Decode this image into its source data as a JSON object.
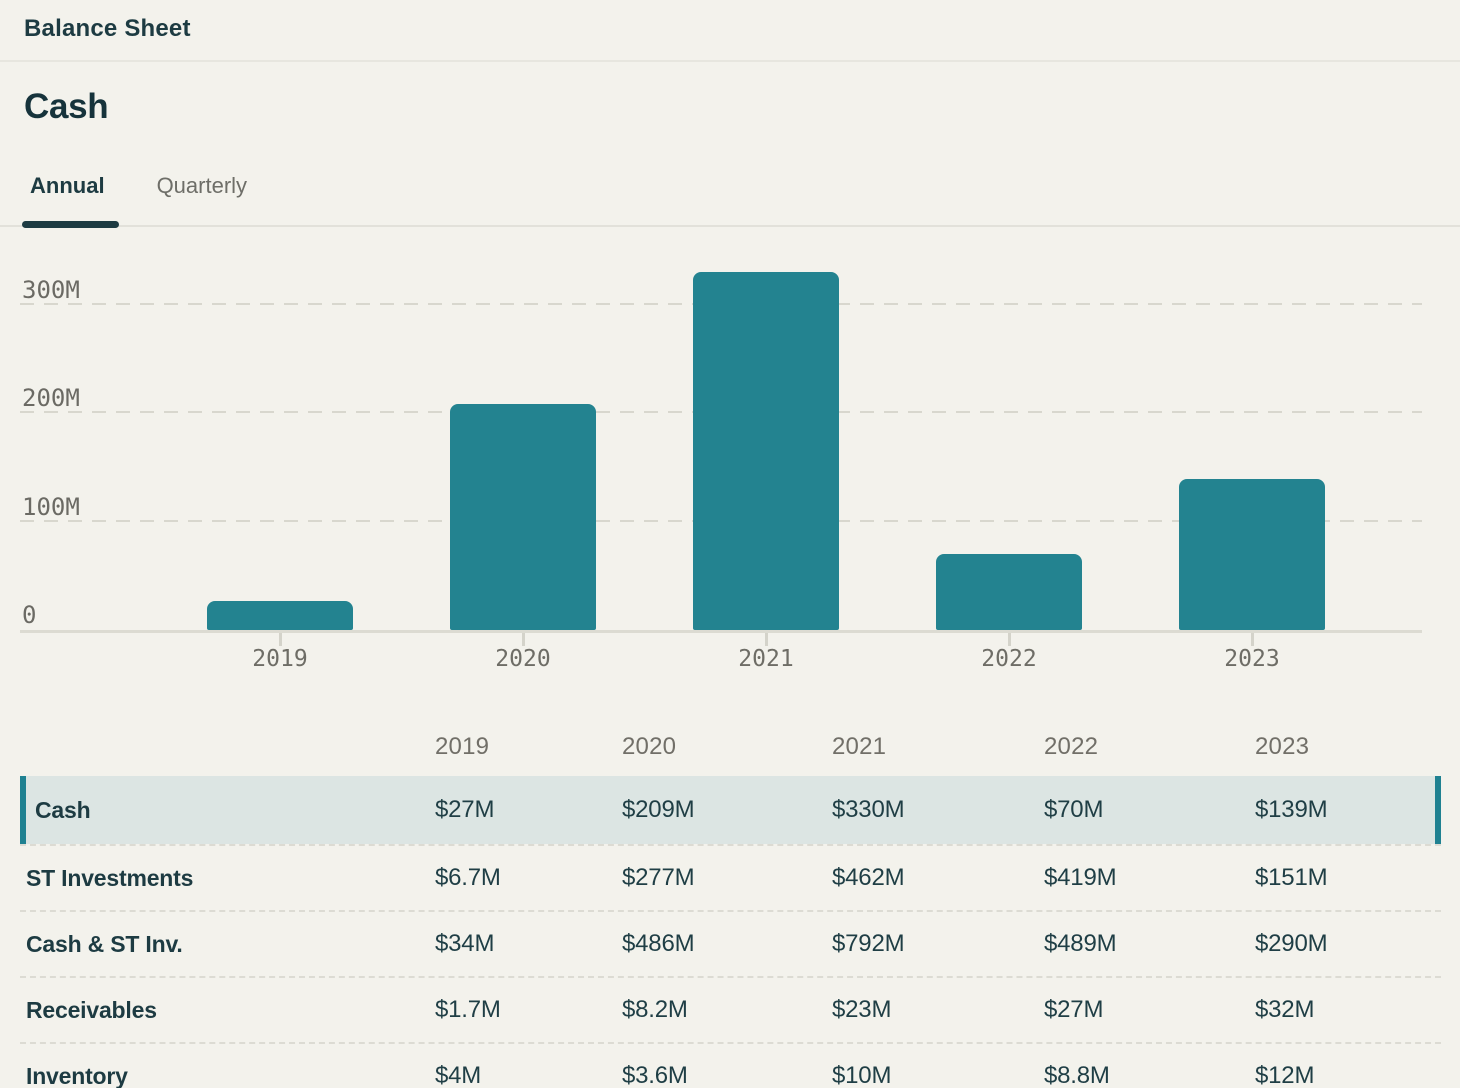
{
  "page": {
    "title": "Balance Sheet"
  },
  "section": {
    "title": "Cash",
    "tabs": [
      {
        "label": "Annual",
        "active": true
      },
      {
        "label": "Quarterly",
        "active": false
      }
    ]
  },
  "chart_data": {
    "type": "bar",
    "title": "Cash",
    "categories": [
      "2019",
      "2020",
      "2021",
      "2022",
      "2023"
    ],
    "values": [
      27,
      209,
      330,
      70,
      139
    ],
    "unit": "millions USD",
    "xlabel": "",
    "ylabel": "",
    "yticks": [
      0,
      100,
      200,
      300
    ],
    "ytick_labels": [
      "0",
      "100M",
      "200M",
      "300M"
    ],
    "ylim": [
      0,
      367
    ],
    "grid": "horizontal-dashed",
    "legend": "none",
    "bar_color": "#238390"
  },
  "table": {
    "columns": [
      "2019",
      "2020",
      "2021",
      "2022",
      "2023"
    ],
    "rows": [
      {
        "label": "Cash",
        "selected": true,
        "values": [
          "$27M",
          "$209M",
          "$330M",
          "$70M",
          "$139M"
        ]
      },
      {
        "label": "ST Investments",
        "selected": false,
        "values": [
          "$6.7M",
          "$277M",
          "$462M",
          "$419M",
          "$151M"
        ]
      },
      {
        "label": "Cash & ST Inv.",
        "selected": false,
        "values": [
          "$34M",
          "$486M",
          "$792M",
          "$489M",
          "$290M"
        ]
      },
      {
        "label": "Receivables",
        "selected": false,
        "values": [
          "$1.7M",
          "$8.2M",
          "$23M",
          "$27M",
          "$32M"
        ]
      },
      {
        "label": "Inventory",
        "selected": false,
        "values": [
          "$4M",
          "$3.6M",
          "$10M",
          "$8.8M",
          "$12M"
        ]
      }
    ]
  },
  "colors": {
    "background": "#F3F2EC",
    "accent_teal": "#238390",
    "text_dark": "#1D3B42",
    "text_gray": "#6E6E68",
    "row_highlight": "#DCE5E3",
    "gridline": "#D8D7CE"
  }
}
